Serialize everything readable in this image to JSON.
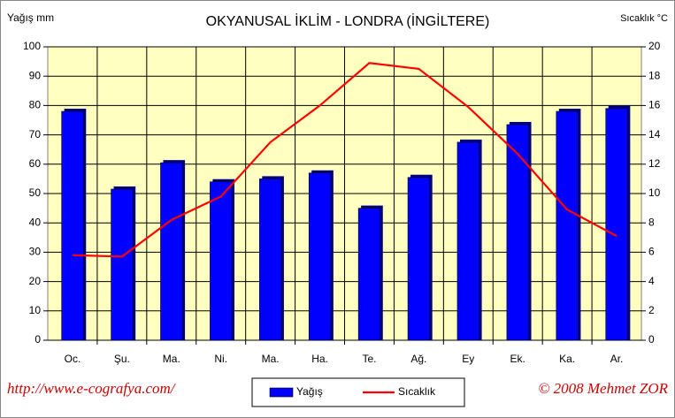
{
  "chart_data": {
    "type": "bar",
    "title": "OKYANUSAL İKLİM - LONDRA (İNGİLTERE)",
    "y_label": "Yağış mm",
    "y2_label": "Sıcaklık  °C",
    "categories": [
      "Oc.",
      "Şu.",
      "Ma.",
      "Ni.",
      "Ma.",
      "Ha.",
      "Te.",
      "Ağ.",
      "Ey",
      "Ek.",
      "Ka.",
      "Ar."
    ],
    "series": [
      {
        "name": "Yağış",
        "type": "bar",
        "color": "#0000ff",
        "values": [
          78,
          51.5,
          60.5,
          54,
          55,
          57,
          45,
          55.5,
          67.5,
          73.5,
          78,
          79
        ]
      },
      {
        "name": "Sıcaklık",
        "type": "line",
        "axis": "y2",
        "color": "#ff0000",
        "values": [
          5.8,
          5.7,
          8.2,
          9.8,
          13.5,
          16,
          18.9,
          18.5,
          15.9,
          12.7,
          8.9,
          7.1
        ]
      }
    ],
    "ylim": [
      0,
      100
    ],
    "yticks": [
      0,
      10,
      20,
      30,
      40,
      50,
      60,
      70,
      80,
      90,
      100
    ],
    "y2lim": [
      0,
      20
    ],
    "y2ticks": [
      0,
      2,
      4,
      6,
      8,
      10,
      12,
      14,
      16,
      18,
      20
    ],
    "grid": true,
    "annotations": [
      "http://www.e-cografya.com/",
      "© 2008  Mehmet ZOR"
    ]
  }
}
